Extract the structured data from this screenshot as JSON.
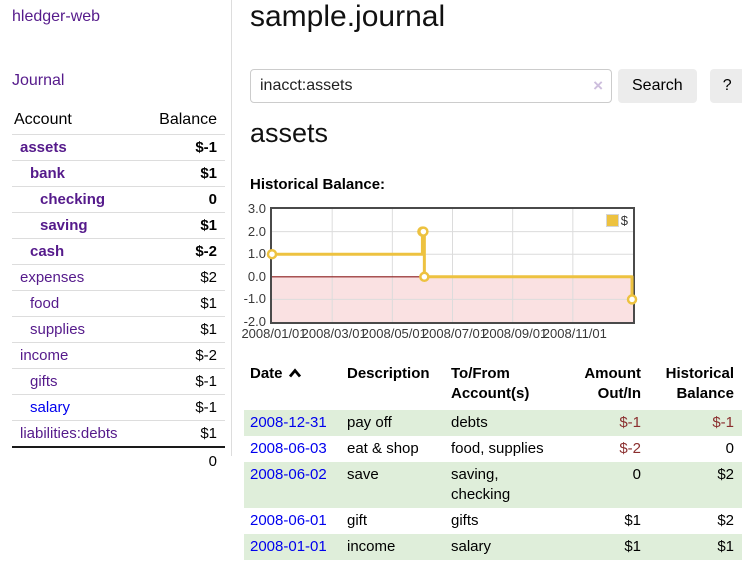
{
  "sidebar": {
    "brand": "hledger-web",
    "nav_journal": "Journal",
    "accounts": {
      "header": {
        "account": "Account",
        "balance": "Balance"
      },
      "rows": [
        {
          "name": "assets",
          "depth": 1,
          "bold": true,
          "balance": "$-1",
          "neg": "strong"
        },
        {
          "name": "bank",
          "depth": 2,
          "bold": true,
          "balance": "$1"
        },
        {
          "name": "checking",
          "depth": 3,
          "bold": true,
          "balance": "0"
        },
        {
          "name": "saving",
          "depth": 3,
          "bold": true,
          "balance": "$1"
        },
        {
          "name": "cash",
          "depth": 2,
          "bold": true,
          "balance": "$-2",
          "neg": "strong"
        },
        {
          "name": "expenses",
          "depth": 1,
          "balance": "$2"
        },
        {
          "name": "food",
          "depth": 2,
          "balance": "$1"
        },
        {
          "name": "supplies",
          "depth": 2,
          "balance": "$1"
        },
        {
          "name": "income",
          "depth": 1,
          "balance": "$-2",
          "neg": "soft"
        },
        {
          "name": "gifts",
          "depth": 2,
          "balance": "$-1",
          "neg": "soft"
        },
        {
          "name": "salary",
          "depth": 2,
          "blue": true,
          "balance": "$-1",
          "neg": "soft"
        },
        {
          "name": "liabilities:debts",
          "depth": 1,
          "balance": "$1"
        }
      ],
      "total": "0"
    }
  },
  "header": {
    "title": "sample.journal"
  },
  "search": {
    "query": "inacct:assets",
    "button": "Search",
    "help_button": "?",
    "clear_glyph": "×"
  },
  "account_page": {
    "title": "assets",
    "chart_label": "Historical Balance:"
  },
  "chart_data": {
    "type": "line",
    "title": "Historical Balance:",
    "legend_label": "$",
    "line_color": "#edc240",
    "marker_style": "open-circle",
    "negative_region_color": "#fae1e2",
    "zero_line_color": "#8b1a1a",
    "grid_color": "#dcdcdc",
    "ylim": [
      -2,
      3
    ],
    "yticks": [
      "3.0",
      "2.0",
      "1.0",
      "0.0",
      "-1.0",
      "-2.0"
    ],
    "xticks": [
      "2008/01/01",
      "2008/03/01",
      "2008/05/01",
      "2008/07/01",
      "2008/09/01",
      "2008/11/01"
    ],
    "series": [
      {
        "name": "$",
        "style": "step",
        "points": [
          {
            "date": "2008-01-01",
            "value": 1
          },
          {
            "date": "2008-06-01",
            "value": 2
          },
          {
            "date": "2008-06-02",
            "value": 2
          },
          {
            "date": "2008-06-03",
            "value": 0
          },
          {
            "date": "2008-12-31",
            "value": -1
          }
        ]
      }
    ]
  },
  "register": {
    "columns": {
      "date": "Date",
      "description": "Description",
      "accounts": "To/From Account(s)",
      "amount": "Amount Out/In",
      "balance": "Historical Balance"
    },
    "rows": [
      {
        "date": "2008-12-31",
        "description": "pay off",
        "accounts": "debts",
        "amount": "$-1",
        "amount_neg": true,
        "balance": "$-1",
        "balance_neg": true
      },
      {
        "date": "2008-06-03",
        "description": "eat & shop",
        "accounts": "food, supplies",
        "amount": "$-2",
        "amount_neg": true,
        "balance": "0"
      },
      {
        "date": "2008-06-02",
        "description": "save",
        "accounts": "saving, checking",
        "amount": "0",
        "balance": "$2"
      },
      {
        "date": "2008-06-01",
        "description": "gift",
        "accounts": "gifts",
        "amount": "$1",
        "balance": "$2"
      },
      {
        "date": "2008-01-01",
        "description": "income",
        "accounts": "salary",
        "amount": "$1",
        "balance": "$1"
      }
    ]
  }
}
